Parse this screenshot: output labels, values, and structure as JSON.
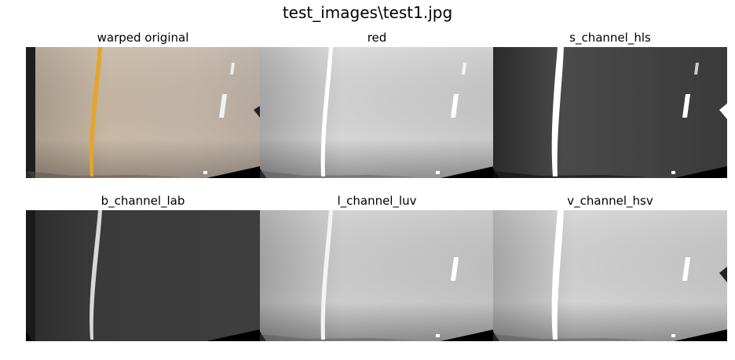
{
  "figure": {
    "title": "test_images\\test1.jpg"
  },
  "panels": [
    {
      "title": "warped original",
      "kind": "color"
    },
    {
      "title": "red",
      "kind": "light"
    },
    {
      "title": "s_channel_hls",
      "kind": "dark"
    },
    {
      "title": "b_channel_lab",
      "kind": "darker"
    },
    {
      "title": "l_channel_luv",
      "kind": "light"
    },
    {
      "title": "v_channel_hsv",
      "kind": "light"
    }
  ],
  "colors": {
    "road_tan": "#c2b4a4",
    "yellow_line": "#e0a21f",
    "light_gray": "#c6c6c6",
    "dark_gray": "#3a3a3a"
  }
}
